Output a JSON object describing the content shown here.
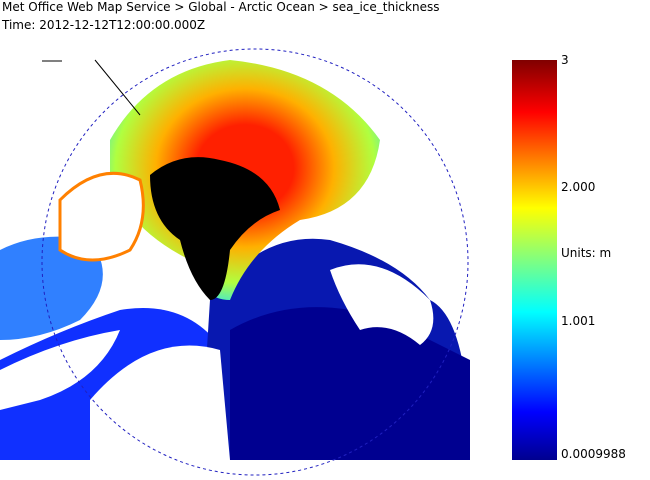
{
  "header": {
    "breadcrumb": "Met Office Web Map Service > Global - Arctic Ocean > sea_ice_thickness",
    "time": "Time: 2012-12-12T12:00:00.000Z"
  },
  "colorbar": {
    "max": "3",
    "upper": "2.000",
    "units": "Units: m",
    "lower": "1.001",
    "min": "0.0009988"
  }
}
